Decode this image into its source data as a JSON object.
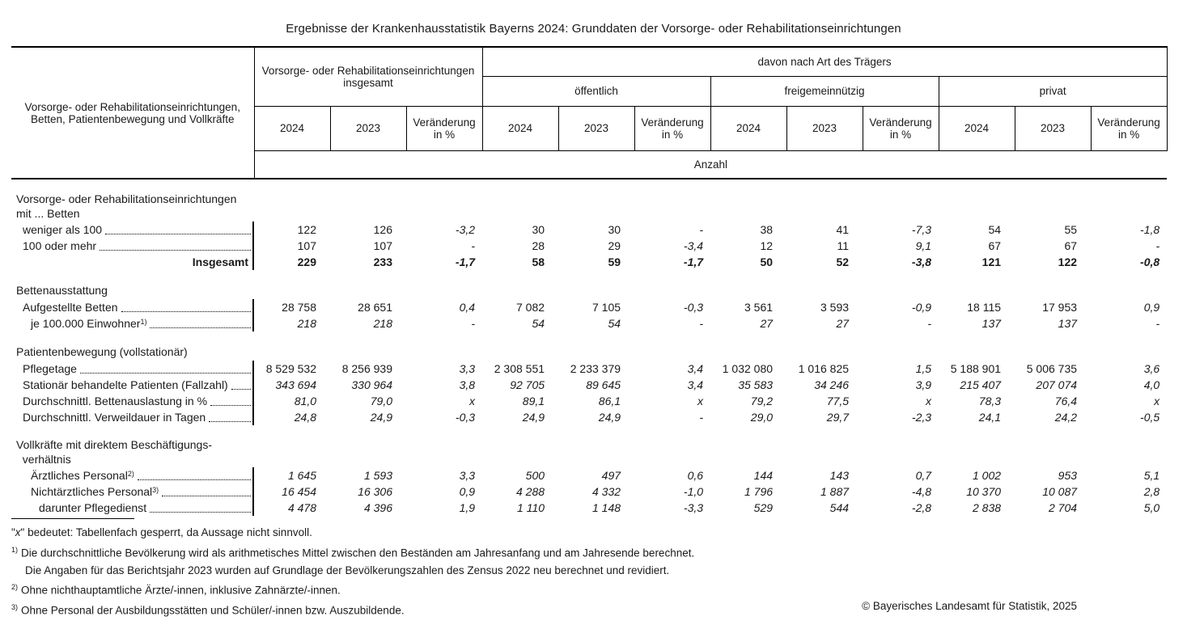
{
  "title": "Ergebnisse der Krankenhausstatistik Bayerns 2024: Grunddaten der Vorsorge- oder Rehabilitationseinrichtungen",
  "table": {
    "header": {
      "corner_line1": "Vorsorge- oder Rehabilitationseinrichtungen,",
      "corner_line2": "Betten, Patientenbewegung und Vollkräfte",
      "group_total": "Vorsorge- oder Rehabilitationseinrichtungen insgesamt",
      "group_traeger": "davon nach Art des Trägers",
      "subgroups": [
        "öffentlich",
        "freigemeinnützig",
        "privat"
      ],
      "col_2024": "2024",
      "col_2023": "2023",
      "col_change": "Veränderung in %",
      "unit": "Anzahl"
    },
    "sections": [
      {
        "heading_lines": [
          "Vorsorge- oder Rehabilitationseinrichtungen",
          "mit ... Betten"
        ],
        "rows": [
          {
            "label": "weniger als 100",
            "sup": "",
            "indent": 1,
            "dotted": true,
            "bold": false,
            "italic_values": false,
            "align": "left",
            "values": [
              "122",
              "126",
              "-3,2",
              "30",
              "30",
              "-",
              "38",
              "41",
              "-7,3",
              "54",
              "55",
              "-1,8"
            ]
          },
          {
            "label": "100 oder mehr",
            "sup": "",
            "indent": 1,
            "dotted": true,
            "bold": false,
            "italic_values": false,
            "align": "left",
            "values": [
              "107",
              "107",
              "-",
              "28",
              "29",
              "-3,4",
              "12",
              "11",
              "9,1",
              "67",
              "67",
              "-"
            ]
          },
          {
            "label": "Insgesamt",
            "sup": "",
            "indent": 1,
            "dotted": false,
            "bold": true,
            "italic_values": false,
            "align": "right",
            "values": [
              "229",
              "233",
              "-1,7",
              "58",
              "59",
              "-1,7",
              "50",
              "52",
              "-3,8",
              "121",
              "122",
              "-0,8"
            ]
          }
        ]
      },
      {
        "heading_lines": [
          "Bettenausstattung"
        ],
        "rows": [
          {
            "label": "Aufgestellte Betten",
            "sup": "",
            "indent": 1,
            "dotted": true,
            "bold": false,
            "italic_values": false,
            "align": "left",
            "values": [
              "28 758",
              "28 651",
              "0,4",
              "7 082",
              "7 105",
              "-0,3",
              "3 561",
              "3 593",
              "-0,9",
              "18 115",
              "17 953",
              "0,9"
            ]
          },
          {
            "label": "je 100.000 Einwohner",
            "sup": "1)",
            "indent": 2,
            "dotted": true,
            "bold": false,
            "italic_values": true,
            "align": "left",
            "values": [
              "218",
              "218",
              "-",
              "54",
              "54",
              "-",
              "27",
              "27",
              "-",
              "137",
              "137",
              "-"
            ]
          }
        ]
      },
      {
        "heading_lines": [
          "Patientenbewegung (vollstationär)"
        ],
        "rows": [
          {
            "label": "Pflegetage",
            "sup": "",
            "indent": 1,
            "dotted": true,
            "bold": false,
            "italic_values": false,
            "align": "left",
            "values": [
              "8 529 532",
              "8 256 939",
              "3,3",
              "2 308 551",
              "2 233 379",
              "3,4",
              "1 032 080",
              "1 016 825",
              "1,5",
              "5 188 901",
              "5 006 735",
              "3,6"
            ]
          },
          {
            "label": "Stationär behandelte Patienten (Fallzahl)",
            "sup": "",
            "indent": 1,
            "dotted": true,
            "bold": false,
            "italic_values": true,
            "align": "left",
            "values": [
              "343 694",
              "330 964",
              "3,8",
              "92 705",
              "89 645",
              "3,4",
              "35 583",
              "34 246",
              "3,9",
              "215 407",
              "207 074",
              "4,0"
            ]
          },
          {
            "label": "Durchschnittl. Bettenauslastung in %",
            "sup": "",
            "indent": 1,
            "dotted": true,
            "bold": false,
            "italic_values": true,
            "align": "left",
            "values": [
              "81,0",
              "79,0",
              "x",
              "89,1",
              "86,1",
              "x",
              "79,2",
              "77,5",
              "x",
              "78,3",
              "76,4",
              "x"
            ]
          },
          {
            "label": "Durchschnittl. Verweildauer in Tagen",
            "sup": "",
            "indent": 1,
            "dotted": true,
            "bold": false,
            "italic_values": true,
            "align": "left",
            "values": [
              "24,8",
              "24,9",
              "-0,3",
              "24,9",
              "24,9",
              "-",
              "29,0",
              "29,7",
              "-2,3",
              "24,1",
              "24,2",
              "-0,5"
            ]
          }
        ]
      },
      {
        "heading_lines": [
          "Vollkräfte mit direktem Beschäftigungs-",
          "  verhältnis"
        ],
        "rows": [
          {
            "label": "Ärztliches Personal",
            "sup": "2)",
            "indent": 2,
            "dotted": true,
            "bold": false,
            "italic_values": true,
            "align": "left",
            "values": [
              "1 645",
              "1 593",
              "3,3",
              "500",
              "497",
              "0,6",
              "144",
              "143",
              "0,7",
              "1 002",
              "953",
              "5,1"
            ]
          },
          {
            "label": "Nichtärztliches Personal",
            "sup": "3)",
            "indent": 2,
            "dotted": true,
            "bold": false,
            "italic_values": true,
            "align": "left",
            "values": [
              "16 454",
              "16 306",
              "0,9",
              "4 288",
              "4 332",
              "-1,0",
              "1 796",
              "1 887",
              "-4,8",
              "10 370",
              "10 087",
              "2,8"
            ]
          },
          {
            "label": "darunter Pflegedienst",
            "sup": "",
            "indent": 3,
            "dotted": true,
            "bold": false,
            "italic_values": true,
            "align": "left",
            "values": [
              "4 478",
              "4 396",
              "1,9",
              "1 110",
              "1 148",
              "-3,3",
              "529",
              "544",
              "-2,8",
              "2 838",
              "2 704",
              "5,0"
            ]
          }
        ]
      }
    ]
  },
  "footnotes": {
    "x_note": {
      "pre": "\"",
      "symbol": "x",
      "post": "\" bedeutet: Tabellenfach gesperrt, da Aussage nicht sinnvoll."
    },
    "items": [
      {
        "marker": "1)",
        "lines": [
          "Die durchschnittliche Bevölkerung wird als arithmetisches Mittel zwischen den Beständen am Jahresanfang und am Jahresende berechnet.",
          "Die Angaben für das Berichtsjahr 2023 wurden auf Grundlage der Bevölkerungszahlen des Zensus 2022 neu berechnet und revidiert."
        ]
      },
      {
        "marker": "2)",
        "lines": [
          "Ohne nichthauptamtliche Ärzte/-innen, inklusive Zahnärzte/-innen."
        ]
      },
      {
        "marker": "3)",
        "lines": [
          "Ohne Personal der Ausbildungsstätten und Schüler/-innen bzw. Auszubildende."
        ]
      }
    ]
  },
  "copyright": "© Bayerisches Landesamt für Statistik, 2025"
}
